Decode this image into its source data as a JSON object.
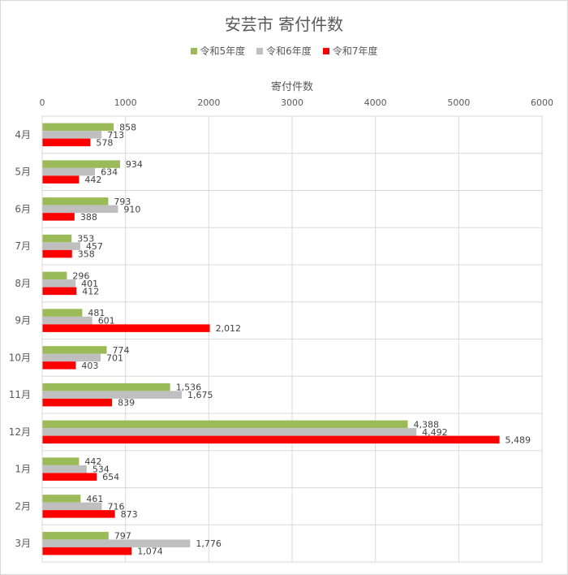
{
  "chart_data": {
    "type": "bar",
    "orientation": "horizontal",
    "title": "安芸市 寄付件数",
    "xlabel": "寄付件数",
    "xlim": [
      0,
      6000
    ],
    "xticks": [
      0,
      1000,
      2000,
      3000,
      4000,
      5000,
      6000
    ],
    "x_axis_position": "top",
    "grid": true,
    "legend_position": "top",
    "categories": [
      "4月",
      "5月",
      "6月",
      "7月",
      "8月",
      "9月",
      "10月",
      "11月",
      "12月",
      "1月",
      "2月",
      "3月"
    ],
    "series": [
      {
        "name": "令和5年度",
        "color": "#9bbb59",
        "values": [
          858,
          934,
          793,
          353,
          296,
          481,
          774,
          1536,
          4388,
          442,
          461,
          797
        ],
        "labels": [
          "858",
          "934",
          "793",
          "353",
          "296",
          "481",
          "774",
          "1,536",
          "4,388",
          "442",
          "461",
          "797"
        ]
      },
      {
        "name": "令和6年度",
        "color": "#bfbfbf",
        "values": [
          713,
          634,
          910,
          457,
          401,
          601,
          701,
          1675,
          4492,
          534,
          716,
          1776
        ],
        "labels": [
          "713",
          "634",
          "910",
          "457",
          "401",
          "601",
          "701",
          "1,675",
          "4,492",
          "534",
          "716",
          "1,776"
        ]
      },
      {
        "name": "令和7年度",
        "color": "#ff0000",
        "values": [
          578,
          442,
          388,
          358,
          412,
          2012,
          403,
          839,
          5489,
          654,
          873,
          1074
        ],
        "labels": [
          "578",
          "442",
          "388",
          "358",
          "412",
          "2,012",
          "403",
          "839",
          "5,489",
          "654",
          "873",
          "1,074"
        ]
      }
    ]
  }
}
